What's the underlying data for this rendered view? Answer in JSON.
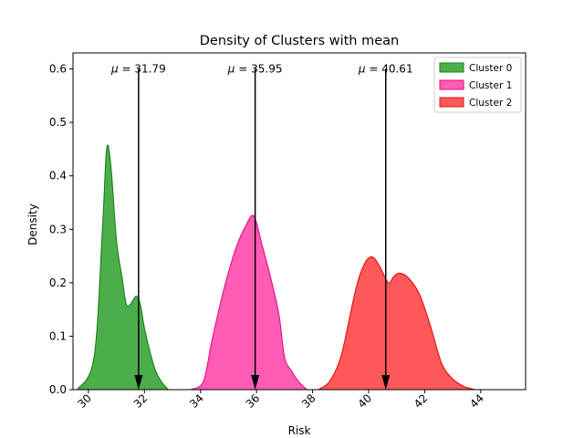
{
  "chart_data": {
    "type": "area",
    "title": "Density of Clusters with mean",
    "xlabel": "Risk",
    "ylabel": "Density",
    "xlim": [
      29.45,
      45.6
    ],
    "ylim": [
      0,
      0.63
    ],
    "xticks": [
      30,
      32,
      34,
      36,
      38,
      40,
      42,
      44
    ],
    "yticks": [
      0.0,
      0.1,
      0.2,
      0.3,
      0.4,
      0.5,
      0.6
    ],
    "xtick_labels": [
      "30",
      "32",
      "34",
      "36",
      "38",
      "40",
      "42",
      "44"
    ],
    "ytick_labels": [
      "0.0",
      "0.1",
      "0.2",
      "0.3",
      "0.4",
      "0.5",
      "0.6"
    ],
    "legend_position": "top-right",
    "series": [
      {
        "name": "Cluster 0",
        "fill": "#2ca02c",
        "edge": "#1a7f1a",
        "mean": 31.79,
        "mean_label_prefix": "μ = ",
        "mean_label_value": "31.79",
        "x": [
          29.6,
          30.2,
          30.5,
          30.65,
          30.8,
          31.0,
          31.2,
          31.35,
          31.5,
          31.7,
          31.85,
          32.0,
          32.2,
          32.4,
          32.6,
          32.85
        ],
        "y": [
          0.0,
          0.06,
          0.3,
          0.45,
          0.42,
          0.28,
          0.21,
          0.16,
          0.16,
          0.175,
          0.16,
          0.115,
          0.07,
          0.035,
          0.015,
          0.0
        ]
      },
      {
        "name": "Cluster 1",
        "fill": "#ff3fa8",
        "edge": "#e0107f",
        "mean": 35.95,
        "mean_label_prefix": "μ = ",
        "mean_label_value": "35.95",
        "x": [
          33.65,
          34.1,
          34.4,
          34.75,
          35.0,
          35.3,
          35.6,
          35.9,
          36.2,
          36.5,
          36.8,
          37.0,
          37.25,
          37.5,
          37.8
        ],
        "y": [
          0.0,
          0.015,
          0.09,
          0.17,
          0.22,
          0.27,
          0.305,
          0.325,
          0.27,
          0.21,
          0.14,
          0.06,
          0.035,
          0.015,
          0.0
        ]
      },
      {
        "name": "Cluster 2",
        "fill": "#ff3b3b",
        "edge": "#e01010",
        "mean": 40.61,
        "mean_label_prefix": "μ = ",
        "mean_label_value": "40.61",
        "x": [
          38.2,
          38.6,
          39.0,
          39.3,
          39.6,
          39.9,
          40.15,
          40.4,
          40.7,
          40.9,
          41.1,
          41.4,
          41.8,
          42.2,
          42.6,
          43.0,
          43.4,
          43.8
        ],
        "y": [
          0.0,
          0.015,
          0.06,
          0.13,
          0.2,
          0.24,
          0.248,
          0.23,
          0.2,
          0.212,
          0.218,
          0.21,
          0.18,
          0.12,
          0.05,
          0.02,
          0.006,
          0.0
        ]
      }
    ]
  }
}
